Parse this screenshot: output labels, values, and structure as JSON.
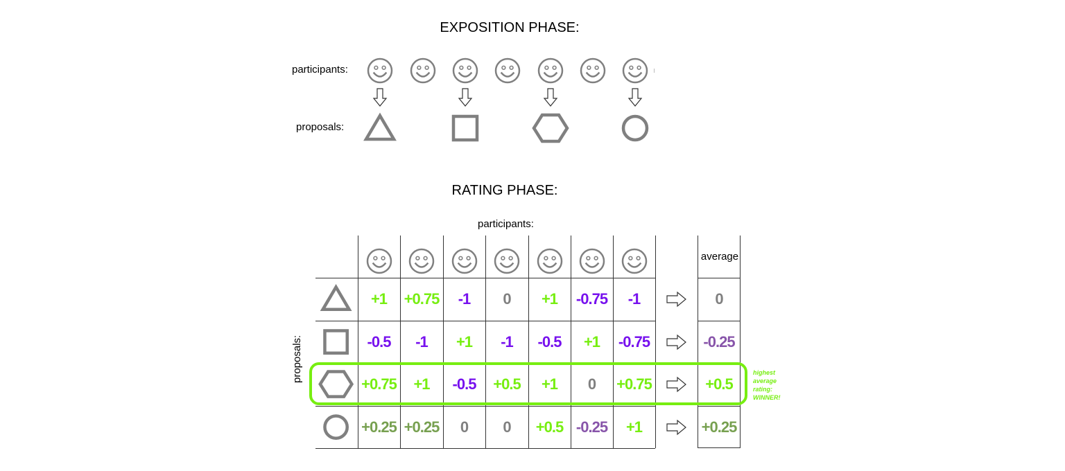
{
  "exposition": {
    "title": "EXPOSITION PHASE:",
    "participants_label": "participants:",
    "proposals_label": "proposals:",
    "participant_count": 7,
    "proposals": [
      {
        "shape": "triangle-icon",
        "by_participant": 1
      },
      {
        "shape": "square-icon",
        "by_participant": 3
      },
      {
        "shape": "hexagon-icon",
        "by_participant": 5
      },
      {
        "shape": "circle-icon",
        "by_participant": 7
      }
    ]
  },
  "rating": {
    "title": "RATING PHASE:",
    "participants_label": "participants:",
    "proposals_label": "proposals:",
    "average_label": "average",
    "rows": [
      {
        "shape": "triangle-icon",
        "ratings": [
          "+1",
          "+0.75",
          "-1",
          "0",
          "+1",
          "-0.75",
          "-1"
        ],
        "average": "0"
      },
      {
        "shape": "square-icon",
        "ratings": [
          "-0.5",
          "-1",
          "+1",
          "-1",
          "-0.5",
          "+1",
          "-0.75"
        ],
        "average": "-0.25"
      },
      {
        "shape": "hexagon-icon",
        "ratings": [
          "+0.75",
          "+1",
          "-0.5",
          "+0.5",
          "+1",
          "0",
          "+0.75"
        ],
        "average": "+0.5"
      },
      {
        "shape": "circle-icon",
        "ratings": [
          "+0.25",
          "+0.25",
          "0",
          "0",
          "+0.5",
          "-0.25",
          "+1"
        ],
        "average": "+0.25"
      }
    ],
    "winner_note": [
      "highest",
      "average",
      "rating:",
      "WINNER!"
    ]
  },
  "colors": {
    "positive": "#77ee11",
    "negative": "#7711ee",
    "zero": "#808080",
    "mid_positive": "#77a050",
    "mid_negative": "#8855aa",
    "shape": "#808080",
    "highlight": "#77ee11"
  }
}
